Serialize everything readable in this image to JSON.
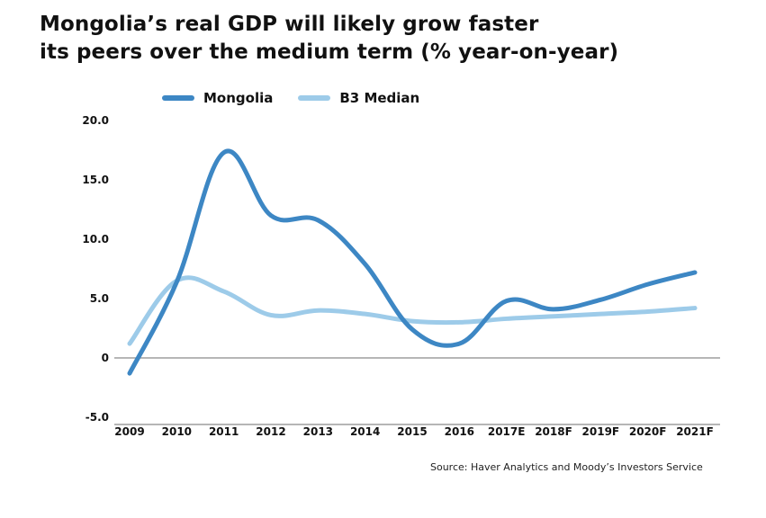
{
  "chart_data": {
    "type": "line",
    "title_lines": [
      "Mongolia’s real GDP will likely grow faster",
      "its peers over the medium term (% year-on-year)"
    ],
    "categories": [
      "2009",
      "2010",
      "2011",
      "2012",
      "2013",
      "2014",
      "2015",
      "2016",
      "2017E",
      "2018F",
      "2019F",
      "2020F",
      "2021F"
    ],
    "series": [
      {
        "name": "Mongolia",
        "color": "#3d87c4",
        "values": [
          -1.3,
          6.4,
          17.3,
          12.0,
          11.6,
          7.9,
          2.4,
          1.2,
          4.8,
          4.1,
          4.9,
          6.2,
          7.2
        ]
      },
      {
        "name": "B3 Median",
        "color": "#9dcbe9",
        "values": [
          1.2,
          6.5,
          5.6,
          3.6,
          4.0,
          3.7,
          3.1,
          3.0,
          3.3,
          3.5,
          3.7,
          3.9,
          4.2
        ]
      }
    ],
    "y_ticks": [
      "20.0",
      "15.0",
      "10.0",
      "5.0",
      "0",
      "-5.0"
    ],
    "y_tick_values": [
      20,
      15,
      10,
      5,
      0,
      -5
    ],
    "ylim": [
      -5,
      20
    ],
    "grid": false,
    "legend_position": "top-left"
  },
  "source": "Source: Haver Analytics and Moody’s Investors Service"
}
